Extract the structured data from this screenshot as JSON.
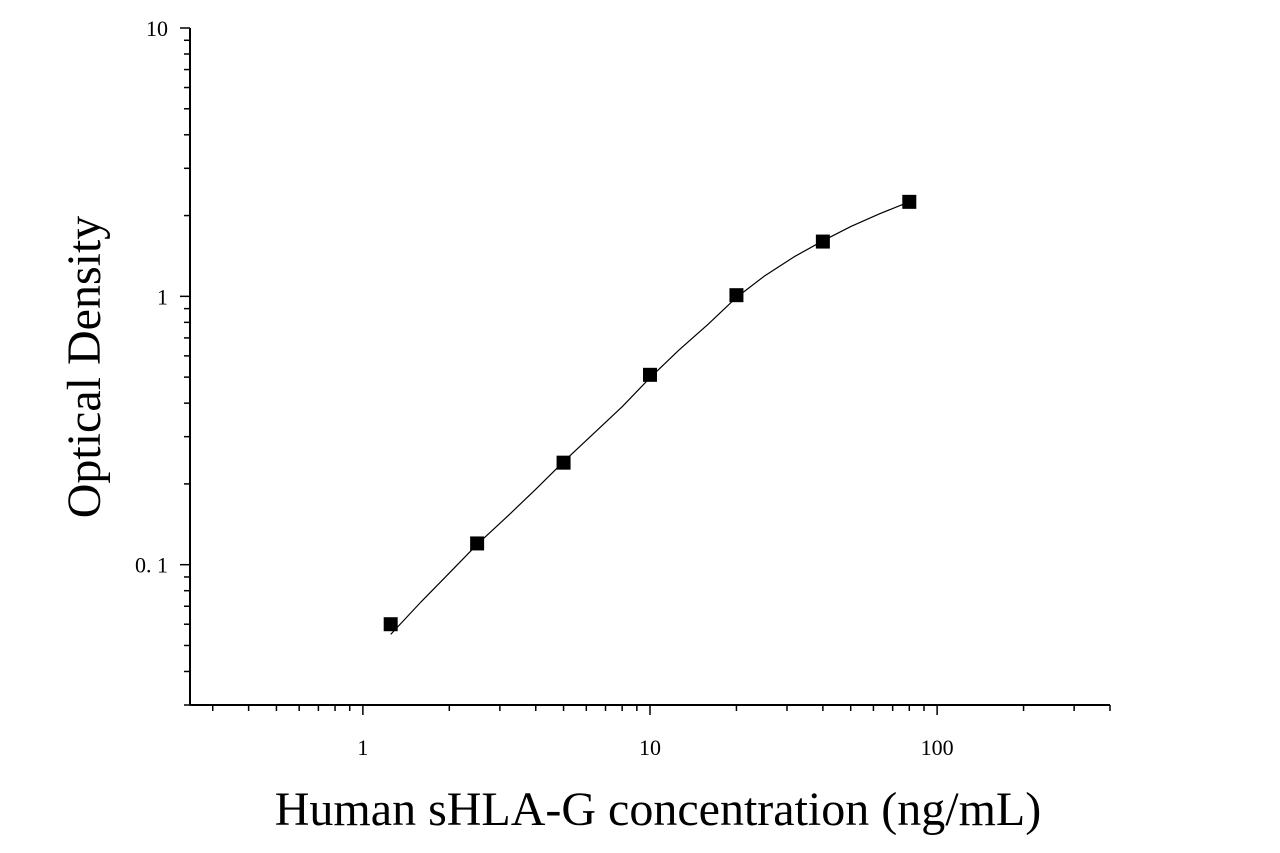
{
  "chart_data": {
    "type": "scatter",
    "title": "",
    "xlabel": "Human sHLA-G concentration (ng/mL)",
    "ylabel": "Optical Density",
    "x_scale": "log",
    "y_scale": "log",
    "xlim": [
      0.25,
      400
    ],
    "ylim": [
      0.03,
      10
    ],
    "x_ticks": [
      {
        "value": 1,
        "label": "1"
      },
      {
        "value": 10,
        "label": "10"
      },
      {
        "value": 100,
        "label": "100"
      }
    ],
    "y_ticks": [
      {
        "value": 0.1,
        "label": "0. 1"
      },
      {
        "value": 1,
        "label": "1"
      },
      {
        "value": 10,
        "label": "10"
      }
    ],
    "grid": false,
    "legend": "none",
    "marker": "square",
    "color": "#000000",
    "series": [
      {
        "x": [
          1.25,
          2.5,
          5,
          10,
          20,
          40,
          80
        ],
        "y": [
          0.06,
          0.12,
          0.24,
          0.51,
          1.01,
          1.6,
          2.25
        ]
      }
    ],
    "fit_curve": {
      "x": [
        1.25,
        1.6,
        2.0,
        2.5,
        3.2,
        4.0,
        5.0,
        6.3,
        8.0,
        10,
        12.6,
        16,
        20,
        25,
        32,
        40,
        50,
        63,
        80
      ],
      "y": [
        0.055,
        0.073,
        0.093,
        0.119,
        0.152,
        0.191,
        0.242,
        0.305,
        0.388,
        0.497,
        0.63,
        0.79,
        0.99,
        1.19,
        1.41,
        1.61,
        1.82,
        2.03,
        2.25
      ]
    }
  }
}
